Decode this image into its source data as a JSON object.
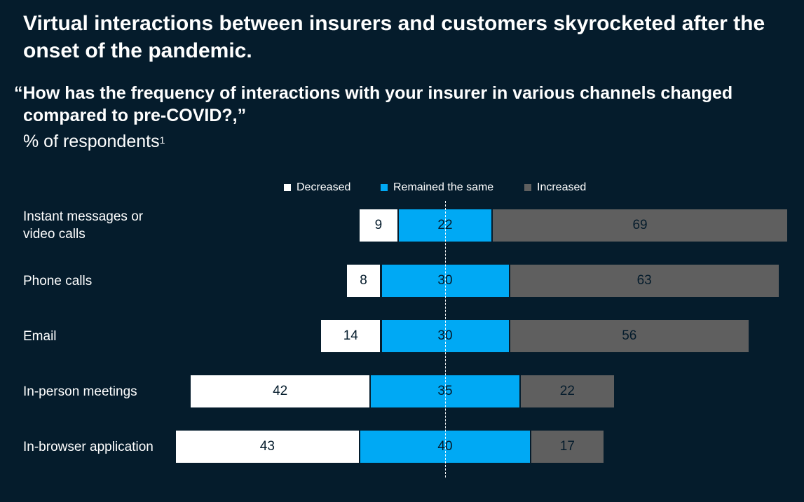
{
  "header": {
    "title": "Virtual interactions between insurers and customers skyrocketed after the onset of the pandemic.",
    "question": "“How has the frequency of interactions with your insurer in various channels changed compared to pre-COVID?,”",
    "unit": "% of respondents",
    "footnote_marker": "1"
  },
  "colors": {
    "decreased": "#ffffff",
    "same": "#00a9f4",
    "increased": "#5f5f5f",
    "background": "#051c2c"
  },
  "chart_data": {
    "type": "bar",
    "orientation": "horizontal",
    "stacked": "diverging",
    "categories": [
      "Instant messages or video calls",
      "Phone calls",
      "Email",
      "In-person meetings",
      "In-browser application"
    ],
    "series": [
      {
        "name": "Decreased",
        "values": [
          9,
          8,
          14,
          42,
          43
        ]
      },
      {
        "name": "Remained the same",
        "values": [
          22,
          30,
          30,
          35,
          40
        ]
      },
      {
        "name": "Increased",
        "values": [
          69,
          63,
          56,
          22,
          17
        ]
      }
    ],
    "title": "",
    "xlabel": "",
    "ylabel": "",
    "legend_position": "top",
    "center_line": "middle of Remained the same"
  }
}
